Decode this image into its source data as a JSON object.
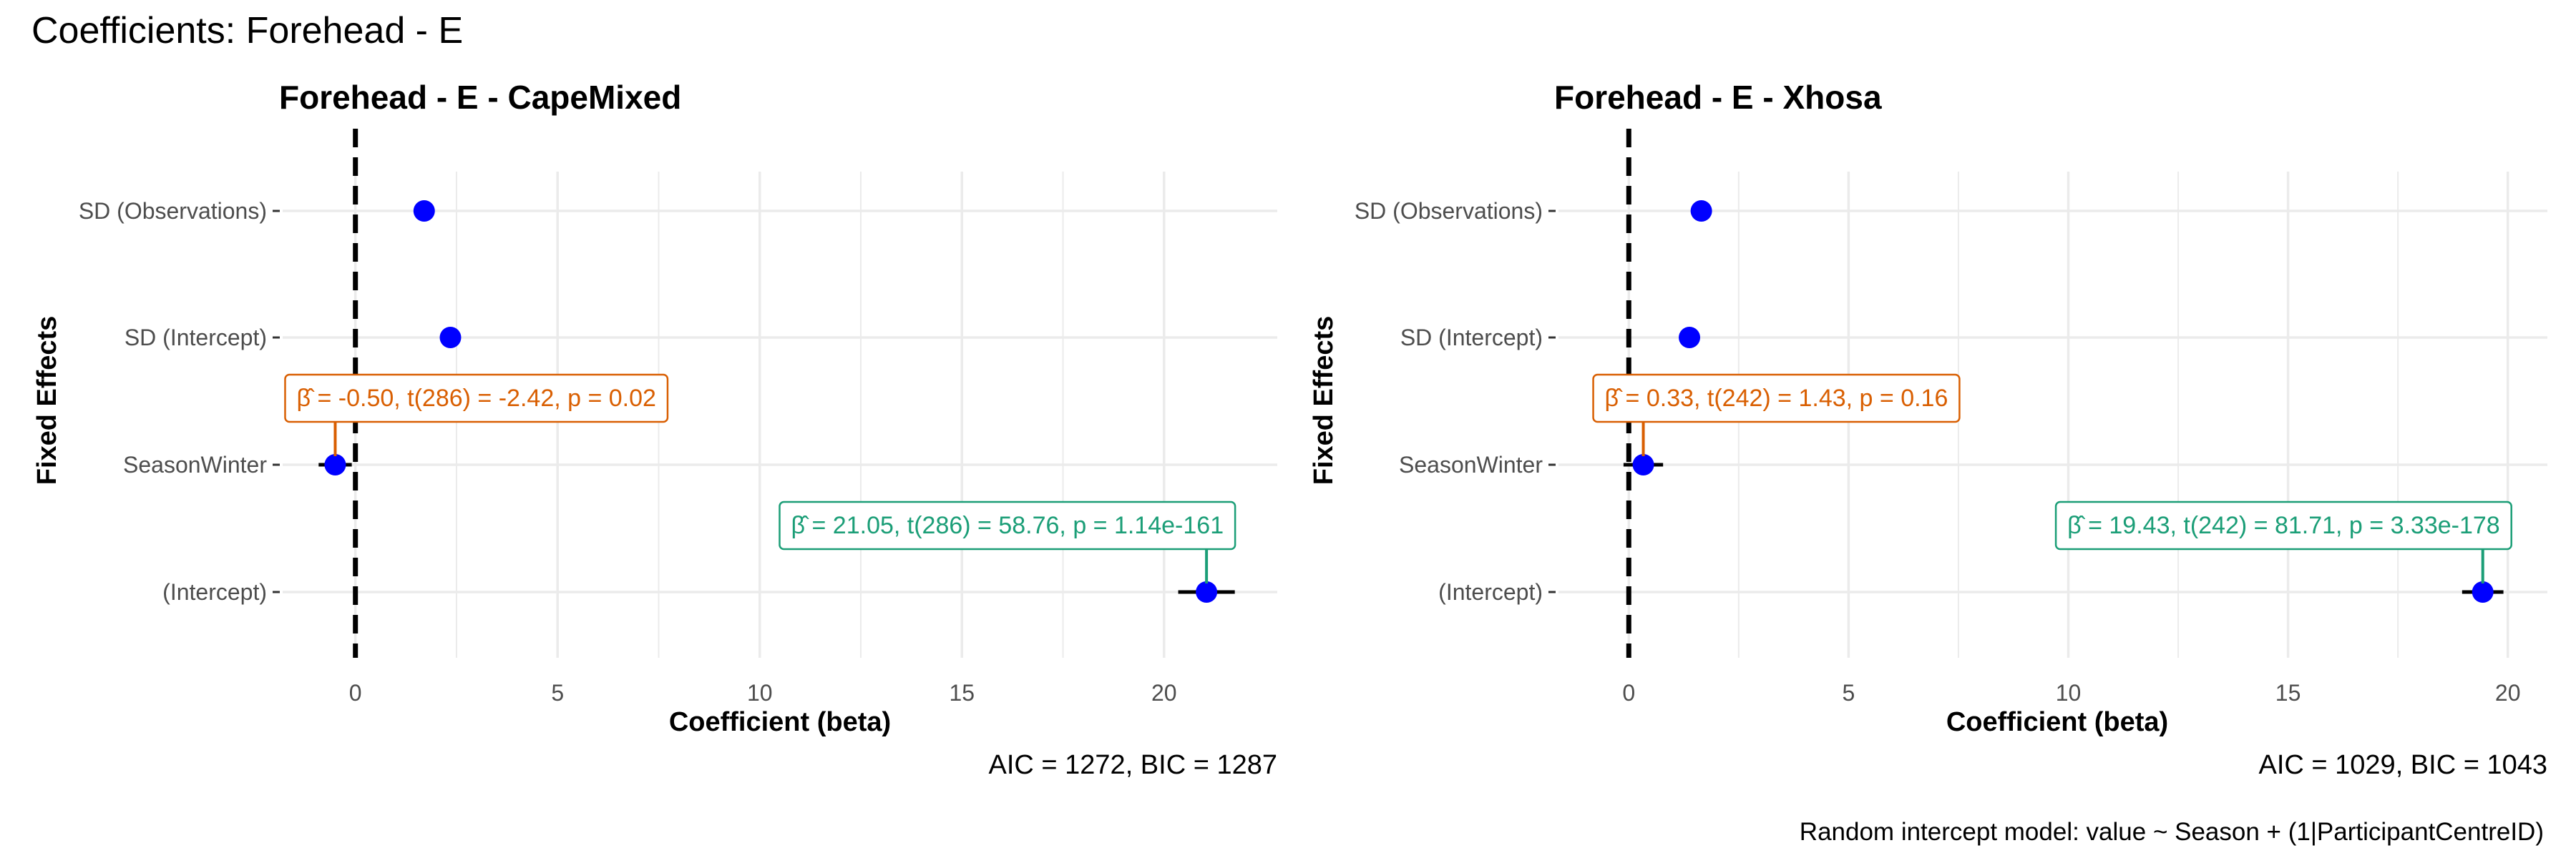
{
  "figure": {
    "title": "Coefficients: Forehead - E",
    "footnote": "Random intercept model: value ~ Season + (1|ParticipantCentreID)"
  },
  "colors": {
    "point": "#0000ff",
    "intercept_label": "#1b9e77",
    "season_label": "#d95f02",
    "grid": "#ebebeb",
    "zero_line": "#000000"
  },
  "chart_data": [
    {
      "type": "scatter",
      "title": "Forehead - E - CapeMixed",
      "xlabel": "Coefficient (beta)",
      "ylabel": "Fixed Effects",
      "xlim": [
        -1.8,
        22.8
      ],
      "x_ticks": [
        0,
        5,
        10,
        15,
        20
      ],
      "categories": [
        "SD (Observations)",
        "SD (Intercept)",
        "SeasonWinter",
        "(Intercept)"
      ],
      "points": [
        {
          "term": "SD (Observations)",
          "estimate": 1.7
        },
        {
          "term": "SD (Intercept)",
          "estimate": 2.35
        },
        {
          "term": "SeasonWinter",
          "estimate": -0.5,
          "ci": [
            -0.91,
            -0.09
          ]
        },
        {
          "term": "(Intercept)",
          "estimate": 21.05,
          "ci": [
            20.35,
            21.75
          ]
        }
      ],
      "labels": [
        {
          "term": "SeasonWinter",
          "stats": "= -0.50, t(286) = -2.42, p = 0.02",
          "color_key": "season_label"
        },
        {
          "term": "(Intercept)",
          "stats": "= 21.05, t(286) = 58.76, p = 1.14e-161",
          "color_key": "intercept_label"
        }
      ],
      "caption": "AIC = 1272, BIC = 1287",
      "grid": true
    },
    {
      "type": "scatter",
      "title": "Forehead - E - Xhosa",
      "xlabel": "Coefficient (beta)",
      "ylabel": "Fixed Effects",
      "xlim": [
        -1.6,
        20.9
      ],
      "x_ticks": [
        0,
        5,
        10,
        15,
        20
      ],
      "categories": [
        "SD (Observations)",
        "SD (Intercept)",
        "SeasonWinter",
        "(Intercept)"
      ],
      "points": [
        {
          "term": "SD (Observations)",
          "estimate": 1.65
        },
        {
          "term": "SD (Intercept)",
          "estimate": 1.38
        },
        {
          "term": "SeasonWinter",
          "estimate": 0.33,
          "ci": [
            -0.12,
            0.78
          ]
        },
        {
          "term": "(Intercept)",
          "estimate": 19.43,
          "ci": [
            18.96,
            19.9
          ]
        }
      ],
      "labels": [
        {
          "term": "SeasonWinter",
          "stats": "= 0.33, t(242) = 1.43, p = 0.16",
          "color_key": "season_label"
        },
        {
          "term": "(Intercept)",
          "stats": "= 19.43, t(242) = 81.71, p = 3.33e-178",
          "color_key": "intercept_label"
        }
      ],
      "caption": "AIC = 1029, BIC = 1043",
      "grid": true
    }
  ]
}
